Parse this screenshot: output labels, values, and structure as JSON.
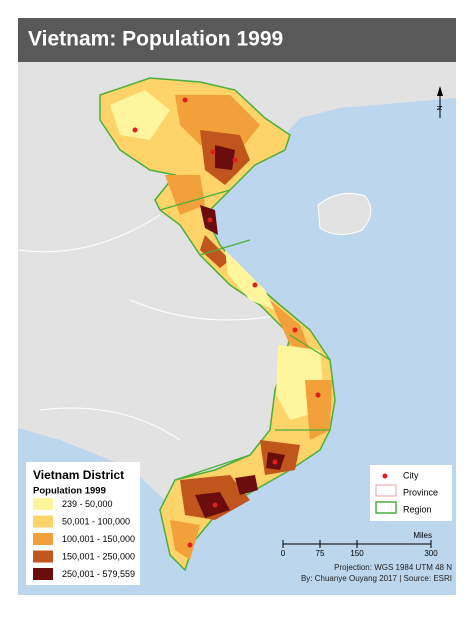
{
  "header": {
    "title": "Vietnam: Population 1999"
  },
  "legend": {
    "title": "Vietnam District",
    "subtitle": "Population 1999",
    "classes": [
      {
        "label": "239 - 50,000",
        "color": "#fff59d"
      },
      {
        "label": "50,001 - 100,000",
        "color": "#fdd36a"
      },
      {
        "label": "100,001 - 150,000",
        "color": "#f2a03a"
      },
      {
        "label": "150,001 - 250,000",
        "color": "#c0561c"
      },
      {
        "label": "250,001 - 579,559",
        "color": "#6b0d0d"
      }
    ]
  },
  "key": {
    "items": [
      {
        "label": "City"
      },
      {
        "label": "Province"
      },
      {
        "label": "Region"
      }
    ]
  },
  "scale": {
    "unit": "Miles",
    "ticks": [
      0,
      75,
      150,
      300
    ]
  },
  "north": "N",
  "credits": [
    "Projection: WGS 1984 UTM 48 N",
    "By: Chuanye Ouyang 2017 | Source: ESRI"
  ]
}
